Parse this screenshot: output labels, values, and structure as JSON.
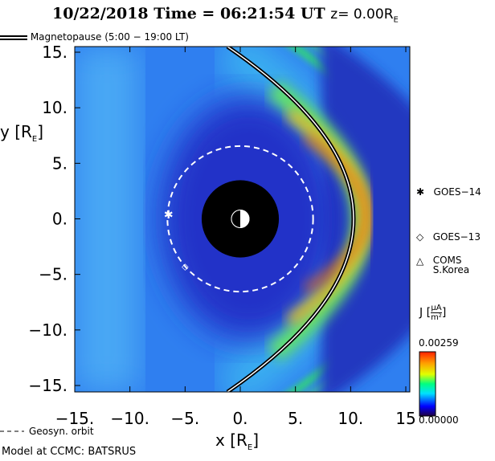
{
  "chart_data": {
    "type": "heatmap",
    "title": {
      "date": "10/22/2018",
      "time_label": "Time = 06:21:54 UT",
      "z_label": "z= 0.00R",
      "z_sub": "E"
    },
    "xlabel": "x [R",
    "xlabel_sub": "E",
    "ylabel": "y [R",
    "ylabel_sub": "E",
    "xlim": [
      -15,
      15
    ],
    "ylim": [
      -15,
      15
    ],
    "xticks": [
      -15,
      -10,
      -5,
      0,
      5,
      10,
      15
    ],
    "xtick_labels": [
      "−15.",
      "−10.",
      "−5.",
      "0.",
      "5.",
      "10.",
      "15"
    ],
    "yticks": [
      15,
      10,
      5,
      0,
      -5,
      -10,
      -15
    ],
    "ytick_labels": [
      "15.",
      "10.",
      "5.",
      "0.",
      "−5.",
      "−10.",
      "−15."
    ],
    "colorbar": {
      "label": "J",
      "unit_num": "μA",
      "unit_den": "m²",
      "max_label": "0.00259",
      "min_label": "0.00000",
      "max": 0.00259,
      "min": 0,
      "colors": [
        "#200040",
        "#0000ff",
        "#00e0ff",
        "#00ff80",
        "#e0ff00",
        "#ffa000",
        "#ff2000"
      ]
    },
    "magnetopause": {
      "label": "Magnetopause (5:00 − 19:00 LT)",
      "nose_x": 10.1
    },
    "earth_radius": 3.5,
    "geosync": {
      "label": "Geosyn. orbit",
      "radius": 6.6
    },
    "satellites": [
      {
        "name": "GOES−14",
        "symbol": "✱",
        "x": -6.5,
        "y": 0.4
      },
      {
        "name": "GOES−13",
        "symbol": "◇",
        "x": -5.0,
        "y": -4.2
      },
      {
        "name": "COMS\nS.Korea",
        "name_line1": "COMS",
        "name_line2": "S.Korea",
        "symbol": "△"
      }
    ],
    "footer": "Model at CCMC: BATSRUS"
  }
}
